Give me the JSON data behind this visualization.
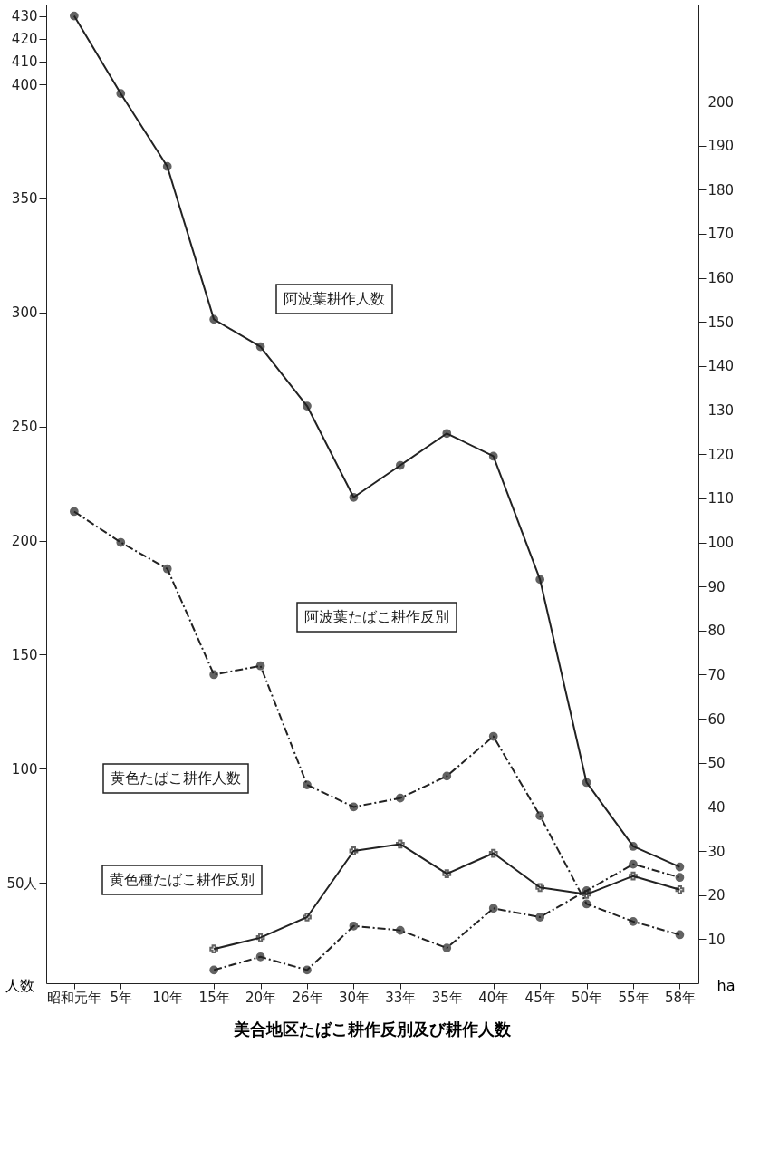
{
  "chart_data": {
    "type": "line",
    "title": "美合地区たばこ耕作反別及び耕作人数",
    "ylabel": "人数",
    "y2label": "ha",
    "categories": [
      "昭和元年",
      "5年",
      "10年",
      "15年",
      "20年",
      "26年",
      "30年",
      "33年",
      "35年",
      "40年",
      "45年",
      "50年",
      "55年",
      "58年"
    ],
    "series": [
      {
        "name": "阿波葉耕作人数",
        "color": "#222222",
        "line_style": "solid",
        "marker": "circle",
        "values": [
          430,
          396,
          364,
          297,
          285,
          259,
          219,
          233,
          247,
          237,
          183,
          94,
          66,
          57
        ]
      },
      {
        "name": "阿波葉たばこ耕作反別",
        "color": "#222222",
        "line_style": "dashed",
        "marker": "circle",
        "axis": "y2",
        "values": [
          107,
          100,
          94,
          70,
          72,
          45,
          40,
          42,
          47,
          56,
          38,
          18,
          14,
          11
        ]
      },
      {
        "name": "黄色たばこ耕作人数",
        "color": "#222222",
        "line_style": "solid",
        "marker": "cross",
        "values": [
          null,
          null,
          null,
          21,
          26,
          35,
          64,
          67,
          54,
          63,
          48,
          45,
          53,
          47
        ]
      },
      {
        "name": "黄色種たばこ耕作反別",
        "color": "#222222",
        "line_style": "dashed",
        "marker": "circle",
        "axis": "y2",
        "values": [
          null,
          null,
          null,
          3,
          6,
          3,
          13,
          12,
          8,
          17,
          15,
          21,
          27,
          24
        ]
      }
    ],
    "ylim": [
      6,
      435
    ],
    "yticks": [
      {
        "value": 50,
        "label": "50人"
      },
      100,
      150,
      200,
      250,
      300,
      350,
      400,
      410,
      420,
      430
    ],
    "y2lim": [
      0,
      222
    ],
    "y2ticks": [
      10,
      20,
      30,
      40,
      50,
      60,
      70,
      80,
      90,
      100,
      110,
      120,
      130,
      140,
      150,
      160,
      170,
      180,
      190,
      200
    ],
    "grid": false,
    "legend": false
  }
}
